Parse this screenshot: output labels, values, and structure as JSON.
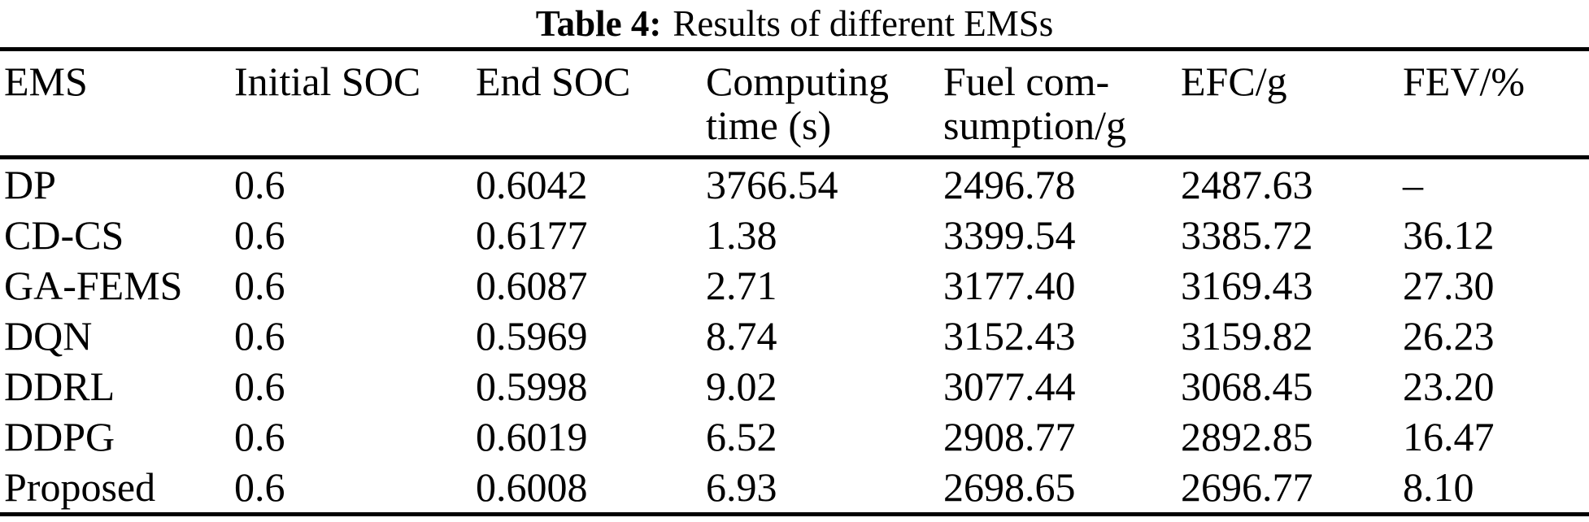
{
  "colors": {
    "text": "#000000",
    "background": "#ffffff",
    "rule": "#000000"
  },
  "caption": {
    "label": "Table 4:",
    "title": "Results of different EMSs"
  },
  "table": {
    "columns": [
      "EMS",
      "Initial SOC",
      "End SOC",
      "Computing\ntime (s)",
      "Fuel com-\nsumption/g",
      "EFC/g",
      "FEV/%"
    ],
    "rows": [
      {
        "cells": [
          "DP",
          "0.6",
          "0.6042",
          "3766.54",
          "2496.78",
          "2487.63",
          "–"
        ]
      },
      {
        "cells": [
          "CD-CS",
          "0.6",
          "0.6177",
          "1.38",
          "3399.54",
          "3385.72",
          "36.12"
        ]
      },
      {
        "cells": [
          "GA-FEMS",
          "0.6",
          "0.6087",
          "2.71",
          "3177.40",
          "3169.43",
          "27.30"
        ]
      },
      {
        "cells": [
          "DQN",
          "0.6",
          "0.5969",
          "8.74",
          "3152.43",
          "3159.82",
          "26.23"
        ]
      },
      {
        "cells": [
          "DDRL",
          "0.6",
          "0.5998",
          "9.02",
          "3077.44",
          "3068.45",
          "23.20"
        ]
      },
      {
        "cells": [
          "DDPG",
          "0.6",
          "0.6019",
          "6.52",
          "2908.77",
          "2892.85",
          "16.47"
        ]
      },
      {
        "cells": [
          "Proposed",
          "0.6",
          "0.6008",
          "6.93",
          "2698.65",
          "2696.77",
          "8.10"
        ]
      }
    ]
  }
}
